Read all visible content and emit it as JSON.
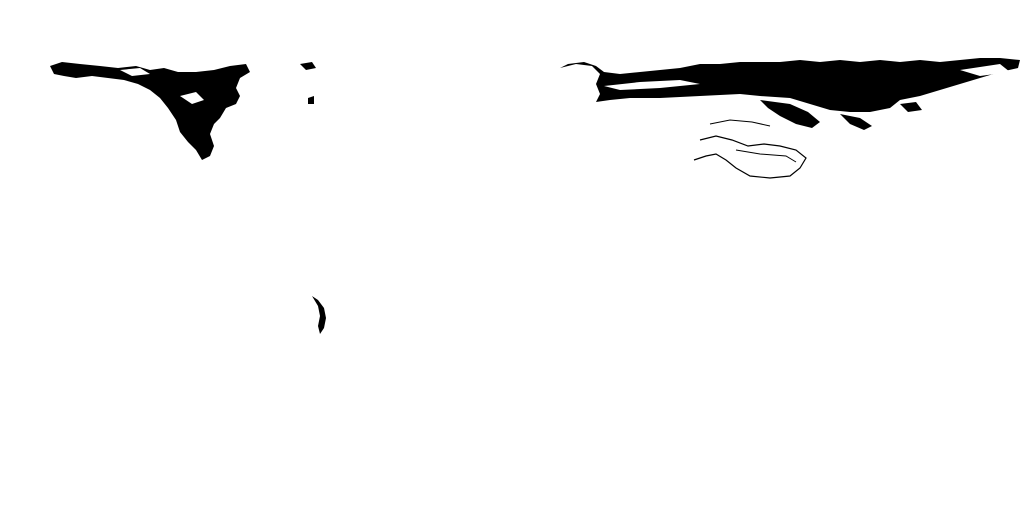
{
  "map": {
    "projection": "equirectangular",
    "style": "binary-mask",
    "background_color": "#ffffff",
    "land_mask_color": "#000000",
    "regions": [
      "north-america-mask",
      "greenland-fragment",
      "eurasia-mask",
      "middle-east-outline",
      "south-america-fragment"
    ]
  }
}
